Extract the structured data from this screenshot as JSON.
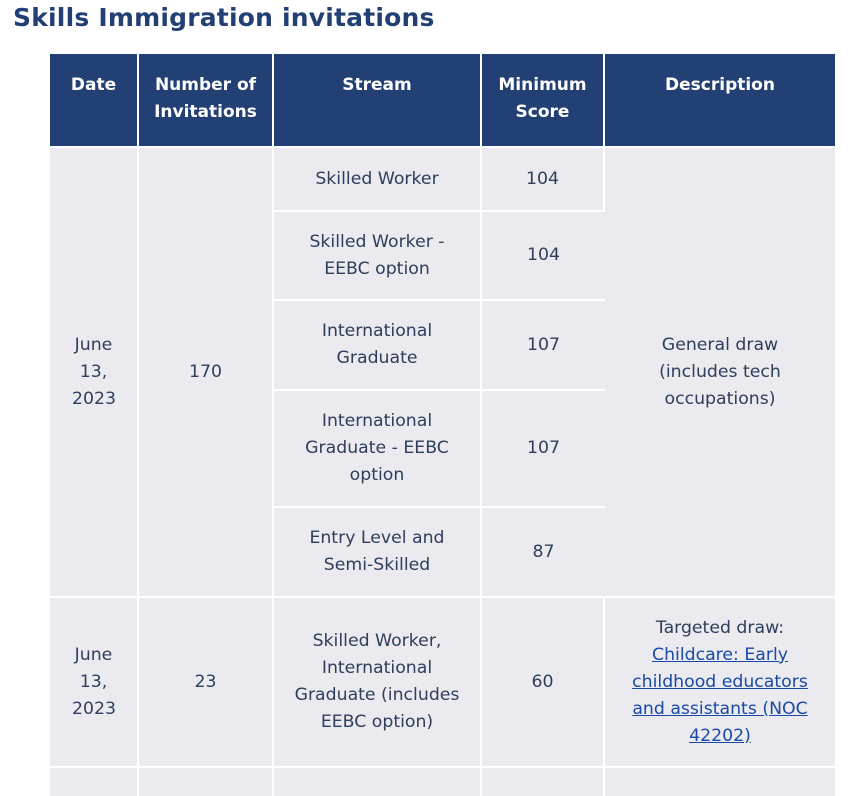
{
  "page_title": "Skills Immigration invitations",
  "headers": {
    "date": "Date",
    "invitations": "Number of Invitations",
    "stream": "Stream",
    "score": "Minimum Score",
    "description": "Description"
  },
  "draws": [
    {
      "date": "June 13, 2023",
      "invitations": "170",
      "description": "General draw (includes tech occupations)",
      "streams": [
        {
          "stream": "Skilled Worker",
          "score": "104"
        },
        {
          "stream": "Skilled Worker - EEBC option",
          "score": "104"
        },
        {
          "stream": "International Graduate",
          "score": "107"
        },
        {
          "stream": "International Graduate - EEBC option",
          "score": "107"
        },
        {
          "stream": "Entry Level and Semi-Skilled",
          "score": "87"
        }
      ]
    },
    {
      "date": "June 13, 2023",
      "invitations": "23",
      "description": "Targeted draw:",
      "description_link": "Childcare: Early childhood educators and assistants (NOC 42202)",
      "streams": [
        {
          "stream": "Skilled Worker, International Graduate (includes EEBC option)",
          "score": "60"
        }
      ]
    }
  ]
}
